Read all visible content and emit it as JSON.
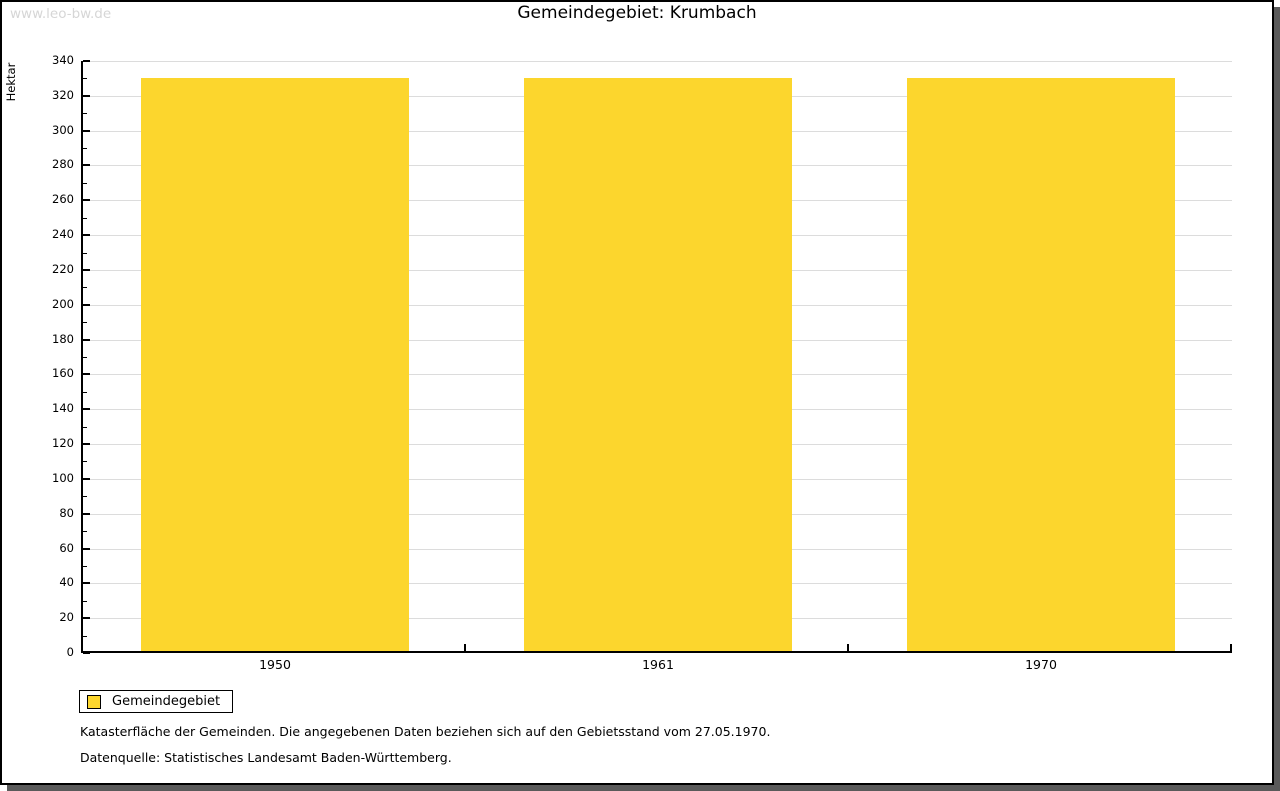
{
  "watermark": "www.leo-bw.de",
  "title": "Gemeindegebiet: Krumbach",
  "legend": {
    "label": "Gemeindegebiet"
  },
  "footnotes": {
    "line1": "Katasterfläche der Gemeinden. Die angegebenen Daten beziehen sich auf den Gebietsstand vom 27.05.1970.",
    "line2": "Datenquelle: Statistisches Landesamt Baden-Württemberg."
  },
  "chart_data": {
    "type": "bar",
    "title": "Gemeindegebiet: Krumbach",
    "categories": [
      "1950",
      "1961",
      "1970"
    ],
    "series": [
      {
        "name": "Gemeindegebiet",
        "values": [
          330,
          330,
          330
        ]
      }
    ],
    "xlabel": "",
    "ylabel": "Hektar",
    "ylim": [
      0,
      340
    ],
    "y_major_step": 20,
    "y_minor_step": 10,
    "grid": true,
    "legend_position": "bottom-left"
  },
  "colors": {
    "bar": "#fcd62d",
    "grid": "#dcdcdc",
    "axis": "#000000",
    "shadow": "#5a5a5a",
    "watermark": "#d6d6d6",
    "background": "#ffffff"
  }
}
